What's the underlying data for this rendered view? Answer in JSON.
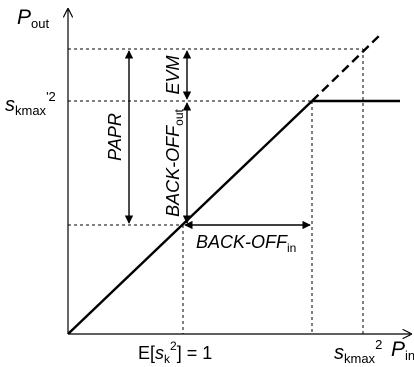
{
  "diagram": {
    "y_axis": {
      "symbol": "P",
      "subscript": "out"
    },
    "x_axis": {
      "symbol": "P",
      "subscript": "in"
    },
    "labels": {
      "s_kmax_prime2": {
        "base": "s",
        "sub": "kmax",
        "sup": "'2"
      },
      "papr": "PAPR",
      "evm": "EVM",
      "backoff_out": {
        "main": "BACK-OFF",
        "sub": "out"
      },
      "backoff_in": {
        "main": "BACK-OFF",
        "sub": "in"
      },
      "expectation": {
        "prefix": "E[",
        "base": "s",
        "sub": "k",
        "sup": "2",
        "suffix": "] = 1"
      },
      "s_kmax2": {
        "base": "s",
        "sub": "kmax",
        "sup": "2"
      }
    }
  }
}
